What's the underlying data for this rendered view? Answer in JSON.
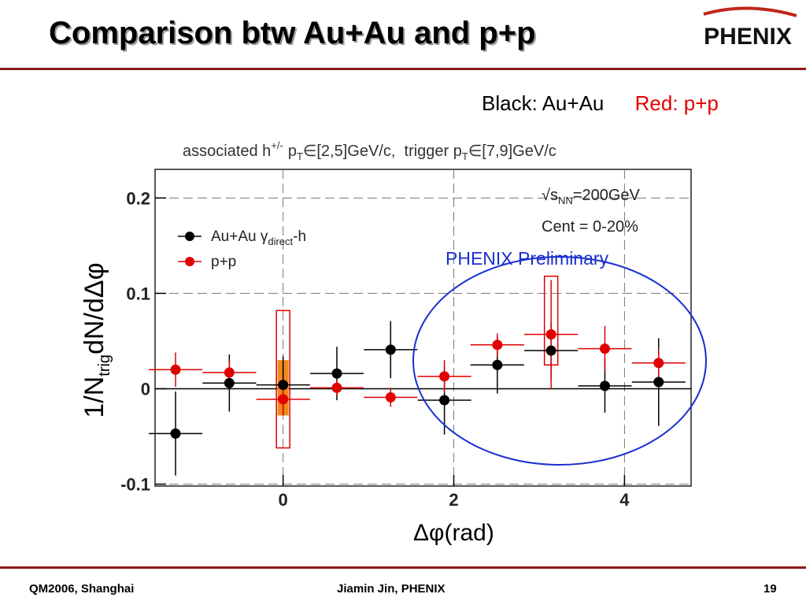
{
  "slide": {
    "title": "Comparison btw Au+Au and p+p",
    "logo_text": "PHENIX",
    "legend_black": "Black: Au+Au",
    "legend_red": "Red: p+p",
    "footer_left": "QM2006, Shanghai",
    "footer_center": "Jiamin Jin, PHENIX",
    "page_number": "19",
    "colors": {
      "rule": "#8b1a1a",
      "red": "#e00000",
      "blue": "#1a2fd0"
    }
  },
  "chart_data": {
    "type": "scatter",
    "header_line": "associated h+/- pT∈[2,5]GeV/c,  trigger pT∈[7,9]GeV/c",
    "header": {
      "pre": "associated h",
      "sup": "+/-",
      "pt1_base": "p",
      "pt1_sub": "T",
      "range1": "∈[2,5]GeV/c,  trigger ",
      "pt2_base": "p",
      "pt2_sub": "T",
      "range2": "∈[7,9]GeV/c"
    },
    "annotation_sqrt_base": "s",
    "annotation_sqrt_sub": "NN",
    "annotation_sqrt_value": "=200GeV",
    "annotation_cent": "Cent = 0-20%",
    "annotation_preliminary": "PHENIX Preliminary",
    "xlabel": "Δφ(rad)",
    "ylabel_pre": "1/N",
    "ylabel_sub": "trig",
    "ylabel_post": "dN/dΔφ",
    "xlim": [
      -1.5,
      4.78
    ],
    "ylim": [
      -0.102,
      0.23
    ],
    "xticks": [
      {
        "value": 0,
        "label": "0"
      },
      {
        "value": 2,
        "label": "2"
      },
      {
        "value": 4,
        "label": "4"
      }
    ],
    "yticks": [
      {
        "value": -0.1,
        "label": "-0.1"
      },
      {
        "value": 0,
        "label": "0"
      },
      {
        "value": 0.1,
        "label": "0.1"
      },
      {
        "value": 0.2,
        "label": "0.2"
      }
    ],
    "legend_position": "top-left",
    "series": [
      {
        "name": "Au+Au γdirect-h",
        "legend_base": "Au+Au γ",
        "legend_sub": "direct",
        "legend_tail": "-h",
        "color": "#000000",
        "xerr": 0.314,
        "x": [
          -1.26,
          -0.63,
          0.0,
          0.63,
          1.26,
          1.89,
          2.51,
          3.14,
          3.77,
          4.4
        ],
        "y": [
          -0.047,
          0.006,
          0.004,
          0.016,
          0.041,
          -0.012,
          0.025,
          0.04,
          0.003,
          0.007
        ],
        "yerr": [
          0.044,
          0.03,
          0.03,
          0.028,
          0.03,
          0.036,
          0.03,
          0.03,
          0.028,
          0.046
        ]
      },
      {
        "name": "p+p",
        "legend_base": "p+p",
        "legend_sub": "",
        "legend_tail": "",
        "color": "#e00000",
        "xerr": 0.314,
        "x": [
          -1.26,
          -0.63,
          0.0,
          0.63,
          1.26,
          1.89,
          2.51,
          3.14,
          3.77,
          4.4
        ],
        "y": [
          0.02,
          0.017,
          -0.011,
          0.001,
          -0.009,
          0.013,
          0.046,
          0.057,
          0.042,
          0.027
        ],
        "yerr": [
          0.018,
          0.012,
          0.017,
          0.008,
          0.01,
          0.017,
          0.012,
          0.057,
          0.024,
          0.015
        ]
      }
    ],
    "systematic_boxes": [
      {
        "series": "Au+Au γdirect-h",
        "x": 0.0,
        "y_low": -0.028,
        "y_high": 0.03,
        "fill": "#f08a1c"
      },
      {
        "series": "p+p",
        "x": 0.0,
        "y_low": -0.062,
        "y_high": 0.082,
        "fill": "none"
      },
      {
        "series": "p+p",
        "x": 3.14,
        "y_low": 0.025,
        "y_high": 0.118,
        "fill": "none"
      }
    ],
    "highlight": "ellipse around away-side points (Δφ ≈ 1.6 to 4.8)"
  }
}
